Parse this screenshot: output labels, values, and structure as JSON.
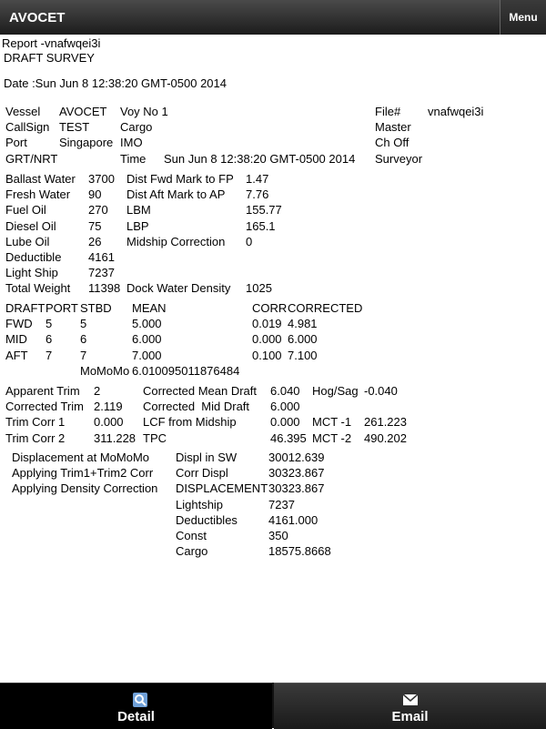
{
  "header": {
    "title": "AVOCET",
    "menu": "Menu"
  },
  "report": {
    "id": "Report -vnafwqei3i",
    "title": "DRAFT SURVEY",
    "date": "Date :Sun Jun 8 12:38:20 GMT-0500 2014"
  },
  "sections": [
    {
      "rows": [
        [
          "Vessel",
          "AVOCET",
          "Voy No 1",
          null,
          "File#",
          "vnafwqei3i"
        ],
        [
          "CallSign",
          "TEST",
          "Cargo",
          null,
          "Master",
          null
        ],
        [
          "Port",
          "Singapore",
          "IMO",
          null,
          "Ch Off",
          null
        ],
        [
          "GRT/NRT",
          null,
          "Time",
          "Sun Jun 8 12:38:20 GMT-0500 2014",
          "Surveyor",
          null
        ]
      ]
    },
    {
      "rows": [
        [
          "Ballast Water",
          "3700",
          "Dist Fwd Mark to FP",
          "1.47"
        ],
        [
          "Fresh Water",
          "90",
          "Dist Aft Mark to AP",
          "7.76"
        ],
        [
          "Fuel Oil",
          "270",
          "LBM",
          "155.77"
        ],
        [
          "Diesel Oil",
          "75",
          "LBP",
          "165.1"
        ],
        [
          "Lube Oil",
          "26",
          "Midship Correction",
          "0"
        ],
        [
          "Deductible",
          "4161",
          null,
          null
        ],
        [
          "Light Ship",
          "7237",
          null,
          null
        ],
        [
          "Total Weight",
          "11398",
          "Dock Water Density",
          "1025"
        ]
      ]
    },
    {
      "rows": [
        [
          "DRAFT",
          "PORT",
          "STBD",
          "MEAN",
          "CORR",
          "CORRECTED"
        ],
        [
          "FWD",
          "5",
          "5",
          "5.000",
          "0.019",
          "4.981"
        ],
        [
          "MID",
          "6",
          "6",
          "6.000",
          "0.000",
          "6.000"
        ],
        [
          "AFT",
          "7",
          "7",
          "7.000",
          "0.100",
          "7.100"
        ],
        [
          null,
          null,
          "MoMoMo",
          "6.010095011876484",
          null,
          null
        ]
      ]
    },
    {
      "rows": [
        [
          "Apparent Trim",
          "2",
          "Corrected Mean Draft",
          "6.040",
          "Hog/Sag",
          "-0.040"
        ],
        [
          "Corrected Trim",
          "2.119",
          "Corrected  Mid Draft",
          "6.000",
          null,
          null
        ],
        [
          "Trim Corr 1",
          "0.000",
          "LCF from Midship",
          "0.000",
          "MCT -1",
          "261.223"
        ],
        [
          "Trim Corr 2",
          "311.228",
          "TPC",
          "46.395",
          "MCT -2",
          "490.202"
        ]
      ]
    },
    {
      "rows": [
        [
          "Displacement at MoMoMo",
          "Displ in SW",
          "30012.639"
        ],
        [
          "Applying Trim1+Trim2 Corr",
          "Corr Displ",
          "30323.867"
        ],
        [
          "Applying Density Correction",
          "DISPLACEMENT",
          "30323.867"
        ],
        [
          null,
          "Lightship",
          "7237"
        ],
        [
          null,
          "Deductibles",
          "4161.000"
        ],
        [
          null,
          "Const",
          "350"
        ],
        [
          null,
          "Cargo",
          "18575.8668"
        ]
      ]
    }
  ],
  "tabs": [
    "Detail",
    "Email"
  ]
}
